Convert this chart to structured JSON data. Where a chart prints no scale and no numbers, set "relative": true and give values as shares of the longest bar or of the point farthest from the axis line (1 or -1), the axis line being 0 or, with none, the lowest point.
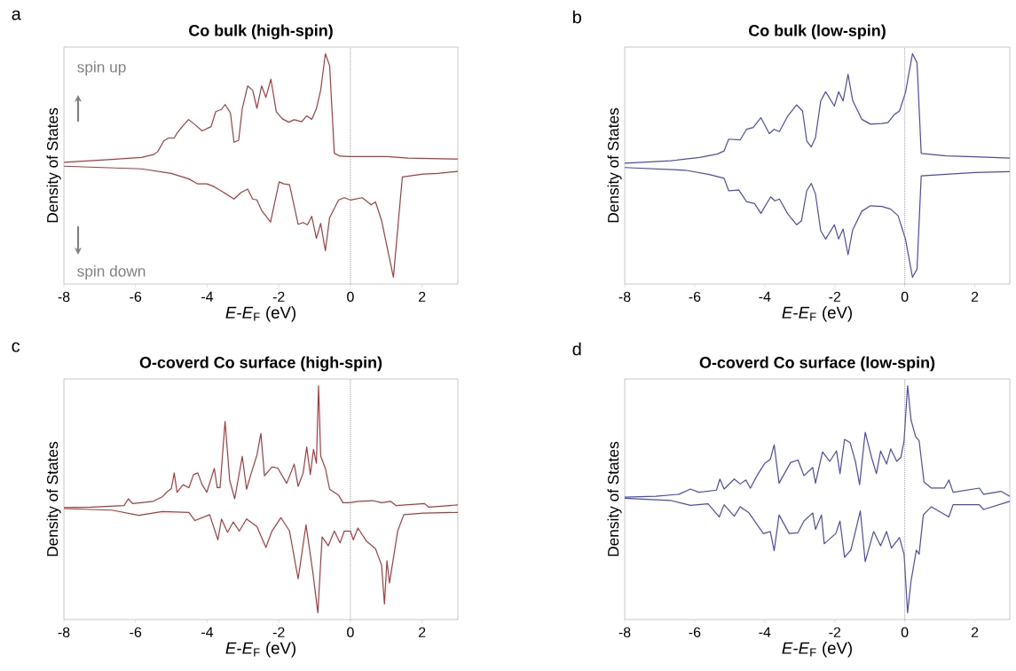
{
  "chart_data": [
    {
      "type": "line",
      "title": "Co bulk (high-spin)",
      "xlabel": "*E*-*E*$_{F}$ (eV)",
      "ylabel": "Density of States",
      "annotations": [
        "a",
        "spin up",
        "spin down"
      ],
      "relative": true,
      "xlim": [
        -8,
        3
      ],
      "xticks": [
        -8,
        -6,
        -4,
        -2,
        0,
        2
      ],
      "tick_labels": "x",
      "marker": "none",
      "line_style": "solid",
      "ref_lines": [
        {
          "axis": "x",
          "value": 0,
          "color": "#808080",
          "line_style": "dotted"
        }
      ],
      "series": [
        {
          "color": "#a83c3c",
          "x": [
            -8,
            -6.66,
            -5.83,
            -5.5,
            -5.38,
            -5.21,
            -5.08,
            -4.92,
            -4.84,
            -4.71,
            -4.52,
            -4.34,
            -4.14,
            -3.89,
            -3.76,
            -3.6,
            -3.5,
            -3.35,
            -3.25,
            -3.12,
            -3.02,
            -2.87,
            -2.73,
            -2.61,
            -2.48,
            -2.36,
            -2.22,
            -2.07,
            -1.9,
            -1.72,
            -1.57,
            -1.36,
            -1.22,
            -1.08,
            -0.95,
            -0.83,
            -0.7,
            -0.58,
            -0.45,
            -0.29,
            0,
            1.03,
            1.61,
            3
          ],
          "values": [
            0.514,
            0.527,
            0.536,
            0.549,
            0.562,
            0.61,
            0.623,
            0.623,
            0.645,
            0.671,
            0.706,
            0.683,
            0.655,
            0.674,
            0.741,
            0.751,
            0.773,
            0.735,
            0.604,
            0.613,
            0.754,
            0.856,
            0.837,
            0.756,
            0.856,
            0.805,
            0.886,
            0.741,
            0.709,
            0.694,
            0.705,
            0.696,
            0.722,
            0.706,
            0.754,
            0.837,
            1.0,
            0.946,
            0.555,
            0.542,
            0.54,
            0.54,
            0.533,
            0.529
          ]
        },
        {
          "color": "#a83c3c",
          "x": [
            -8,
            -5.83,
            -5.0,
            -4.51,
            -4.26,
            -4.01,
            -3.8,
            -3.56,
            -3.25,
            -3.06,
            -2.87,
            -2.73,
            -2.61,
            -2.48,
            -2.23,
            -1.99,
            -1.86,
            -1.7,
            -1.46,
            -1.32,
            -1.2,
            -1.08,
            -0.95,
            -0.83,
            -0.7,
            -0.58,
            -0.33,
            -0.17,
            0,
            0.33,
            0.58,
            0.7,
            0.87,
            1.2,
            1.45,
            2.03,
            2.44,
            3
          ],
          "values": [
            0.497,
            0.485,
            0.465,
            0.44,
            0.418,
            0.418,
            0.405,
            0.382,
            0.35,
            0.379,
            0.395,
            0.35,
            0.346,
            0.299,
            0.247,
            0.427,
            0.418,
            0.414,
            0.237,
            0.245,
            0.235,
            0.273,
            0.174,
            0.241,
            0.119,
            0.267,
            0.346,
            0.356,
            0.346,
            0.356,
            0.324,
            0.337,
            0.254,
            0.0,
            0.449,
            0.462,
            0.465,
            0.474
          ]
        }
      ]
    },
    {
      "type": "line",
      "title": "Co bulk (low-spin)",
      "xlabel": "*E*-*E*$_{F}$ (eV)",
      "ylabel": "Density of States",
      "annotations": [
        "b"
      ],
      "relative": true,
      "xlim": [
        -8,
        3
      ],
      "xticks": [
        -8,
        -6,
        -4,
        -2,
        0,
        2
      ],
      "tick_labels": "x",
      "marker": "none",
      "line_style": "solid",
      "ref_lines": [
        {
          "axis": "x",
          "value": 0,
          "color": "#808080",
          "line_style": "dotted"
        }
      ],
      "series": [
        {
          "color": "#4b4bb4",
          "x": [
            -8,
            -6.69,
            -5.86,
            -5.36,
            -5.16,
            -5.03,
            -4.7,
            -4.52,
            -4.33,
            -4.11,
            -3.87,
            -3.73,
            -3.58,
            -3.34,
            -3.09,
            -2.92,
            -2.8,
            -2.67,
            -2.55,
            -2.4,
            -2.26,
            -2.01,
            -1.89,
            -1.76,
            -1.62,
            -1.49,
            -1.23,
            -0.98,
            -0.65,
            -0.48,
            -0.31,
            -0.15,
            0.02,
            0.22,
            0.35,
            0.47,
            1.18,
            2.0,
            3
          ],
          "values": [
            0.51,
            0.521,
            0.536,
            0.551,
            0.565,
            0.618,
            0.615,
            0.662,
            0.67,
            0.714,
            0.643,
            0.662,
            0.652,
            0.722,
            0.771,
            0.744,
            0.61,
            0.583,
            0.625,
            0.789,
            0.83,
            0.766,
            0.83,
            0.789,
            0.908,
            0.792,
            0.707,
            0.685,
            0.688,
            0.692,
            0.726,
            0.744,
            0.826,
            1.0,
            0.96,
            0.554,
            0.543,
            0.539,
            0.533
          ]
        },
        {
          "color": "#4b4bb4",
          "x": [
            -8,
            -6.27,
            -5.61,
            -5.16,
            -5.03,
            -4.74,
            -4.52,
            -4.29,
            -4.11,
            -3.83,
            -3.71,
            -3.58,
            -3.34,
            -3.09,
            -2.95,
            -2.8,
            -2.67,
            -2.55,
            -2.4,
            -2.26,
            -2.01,
            -1.89,
            -1.76,
            -1.62,
            -1.49,
            -1.23,
            -0.98,
            -0.65,
            -0.4,
            -0.19,
            0.02,
            0.22,
            0.35,
            0.47,
            1.18,
            2.0,
            3
          ],
          "values": [
            0.491,
            0.479,
            0.461,
            0.443,
            0.387,
            0.39,
            0.339,
            0.33,
            0.286,
            0.36,
            0.342,
            0.35,
            0.283,
            0.235,
            0.253,
            0.387,
            0.42,
            0.372,
            0.208,
            0.171,
            0.235,
            0.171,
            0.216,
            0.101,
            0.211,
            0.295,
            0.32,
            0.317,
            0.305,
            0.275,
            0.171,
            0.0,
            0.037,
            0.454,
            0.461,
            0.469,
            0.473
          ]
        }
      ]
    },
    {
      "type": "line",
      "title": "O-coverd Co surface (high-spin)",
      "xlabel": "*E*-*E*$_{F}$ (eV)",
      "ylabel": "Density of States",
      "annotations": [
        "c"
      ],
      "relative": true,
      "xlim": [
        -8,
        3
      ],
      "xticks": [
        -8,
        -6,
        -4,
        -2,
        0,
        2
      ],
      "tick_labels": "x",
      "marker": "none",
      "line_style": "solid",
      "ref_lines": [
        {
          "axis": "x",
          "value": 0,
          "color": "#808080",
          "line_style": "dotted"
        }
      ],
      "series": [
        {
          "color": "#a83c3c",
          "x": [
            -8,
            -7.24,
            -6.32,
            -6.2,
            -6.08,
            -5.5,
            -5.42,
            -5.25,
            -5.13,
            -5.0,
            -4.92,
            -4.84,
            -4.67,
            -4.51,
            -4.38,
            -4.26,
            -4.14,
            -4.01,
            -3.8,
            -3.72,
            -3.64,
            -3.5,
            -3.37,
            -3.23,
            -3.02,
            -2.9,
            -2.78,
            -2.61,
            -2.5,
            -2.4,
            -2.19,
            -2.03,
            -1.78,
            -1.57,
            -1.46,
            -1.32,
            -1.22,
            -1.12,
            -1.03,
            -0.95,
            -0.89,
            -0.83,
            -0.7,
            -0.58,
            -0.33,
            -0.21,
            0,
            0.21,
            0.62,
            0.87,
            1.12,
            1.28,
            2.07,
            2.19,
            3
          ],
          "values": [
            0.463,
            0.465,
            0.472,
            0.502,
            0.481,
            0.491,
            0.498,
            0.511,
            0.531,
            0.547,
            0.616,
            0.531,
            0.564,
            0.551,
            0.609,
            0.616,
            0.564,
            0.531,
            0.636,
            0.551,
            0.551,
            0.843,
            0.583,
            0.502,
            0.689,
            0.544,
            0.609,
            0.695,
            0.79,
            0.603,
            0.642,
            0.638,
            0.57,
            0.655,
            0.557,
            0.616,
            0.73,
            0.609,
            0.72,
            0.659,
            1.0,
            0.691,
            0.636,
            0.544,
            0.518,
            0.485,
            0.485,
            0.491,
            0.494,
            0.485,
            0.491,
            0.472,
            0.481,
            0.465,
            0.475
          ]
        },
        {
          "color": "#a83c3c",
          "x": [
            -8,
            -6.66,
            -5.91,
            -5.25,
            -4.51,
            -4.34,
            -3.93,
            -3.7,
            -3.6,
            -3.43,
            -3.27,
            -3.1,
            -2.9,
            -2.61,
            -2.36,
            -2.19,
            -1.94,
            -1.7,
            -1.46,
            -1.24,
            -1.05,
            -0.91,
            -0.79,
            -0.62,
            -0.45,
            -0.29,
            -0.17,
            0,
            0.08,
            0.21,
            0.45,
            0.7,
            0.87,
            0.95,
            1.02,
            1.09,
            1.32,
            1.49,
            2.03,
            3
          ],
          "values": [
            0.459,
            0.452,
            0.429,
            0.446,
            0.442,
            0.406,
            0.432,
            0.321,
            0.413,
            0.354,
            0.4,
            0.36,
            0.413,
            0.38,
            0.288,
            0.36,
            0.419,
            0.36,
            0.149,
            0.387,
            0.18,
            0.0,
            0.334,
            0.295,
            0.36,
            0.308,
            0.36,
            0.36,
            0.321,
            0.373,
            0.315,
            0.282,
            0.21,
            0.039,
            0.229,
            0.131,
            0.36,
            0.432,
            0.439,
            0.442
          ]
        }
      ]
    },
    {
      "type": "line",
      "title": "O-coverd Co surface (low-spin)",
      "xlabel": "*E*-*E*$_{F}$ (eV)",
      "ylabel": "Density of States",
      "annotations": [
        "d"
      ],
      "relative": true,
      "xlim": [
        -8,
        3
      ],
      "xticks": [
        -8,
        -6,
        -4,
        -2,
        0,
        2
      ],
      "tick_labels": "x",
      "marker": "none",
      "line_style": "solid",
      "ref_lines": [
        {
          "axis": "x",
          "value": 0,
          "color": "#808080",
          "line_style": "dotted"
        }
      ],
      "series": [
        {
          "color": "#4b4bb4",
          "x": [
            -8,
            -7.11,
            -6.45,
            -6.12,
            -5.88,
            -5.38,
            -5.28,
            -5.16,
            -4.87,
            -4.7,
            -4.54,
            -4.41,
            -4.21,
            -4.0,
            -3.84,
            -3.73,
            -3.59,
            -3.26,
            -3.05,
            -2.88,
            -2.63,
            -2.55,
            -2.35,
            -2.14,
            -1.95,
            -1.85,
            -1.72,
            -1.56,
            -1.41,
            -1.29,
            -1.13,
            -0.94,
            -0.81,
            -0.69,
            -0.52,
            -0.4,
            -0.23,
            -0.11,
            -0.02,
            0.08,
            0.18,
            0.31,
            0.41,
            0.55,
            0.76,
            1.13,
            1.26,
            1.38,
            2.13,
            2.25,
            2.75,
            3
          ],
          "values": [
            0.509,
            0.513,
            0.522,
            0.545,
            0.531,
            0.54,
            0.589,
            0.545,
            0.589,
            0.567,
            0.585,
            0.549,
            0.607,
            0.658,
            0.676,
            0.74,
            0.571,
            0.662,
            0.673,
            0.604,
            0.64,
            0.571,
            0.709,
            0.667,
            0.713,
            0.613,
            0.764,
            0.749,
            0.667,
            0.564,
            0.795,
            0.68,
            0.613,
            0.713,
            0.655,
            0.722,
            0.667,
            0.685,
            0.758,
            1.0,
            0.849,
            0.776,
            0.758,
            0.576,
            0.549,
            0.549,
            0.585,
            0.531,
            0.549,
            0.522,
            0.535,
            0.513
          ]
        },
        {
          "color": "#4b4bb4",
          "x": [
            -8,
            -6.69,
            -6.12,
            -5.62,
            -5.3,
            -5.16,
            -4.87,
            -4.7,
            -4.45,
            -4.04,
            -3.84,
            -3.73,
            -3.59,
            -3.3,
            -3.05,
            -2.88,
            -2.63,
            -2.55,
            -2.38,
            -2.3,
            -1.97,
            -1.85,
            -1.72,
            -1.54,
            -1.41,
            -1.27,
            -1.13,
            -0.89,
            -0.69,
            -0.52,
            -0.38,
            -0.15,
            -0.02,
            0.08,
            0.18,
            0.33,
            0.41,
            0.53,
            0.76,
            1.26,
            1.38,
            2.13,
            2.25,
            3
          ],
          "values": [
            0.504,
            0.495,
            0.473,
            0.48,
            0.422,
            0.476,
            0.425,
            0.467,
            0.44,
            0.349,
            0.358,
            0.273,
            0.431,
            0.349,
            0.353,
            0.404,
            0.44,
            0.367,
            0.431,
            0.304,
            0.349,
            0.404,
            0.244,
            0.276,
            0.358,
            0.449,
            0.225,
            0.358,
            0.295,
            0.358,
            0.285,
            0.331,
            0.258,
            0.0,
            0.14,
            0.276,
            0.258,
            0.431,
            0.467,
            0.422,
            0.476,
            0.476,
            0.455,
            0.491
          ]
        }
      ]
    }
  ]
}
